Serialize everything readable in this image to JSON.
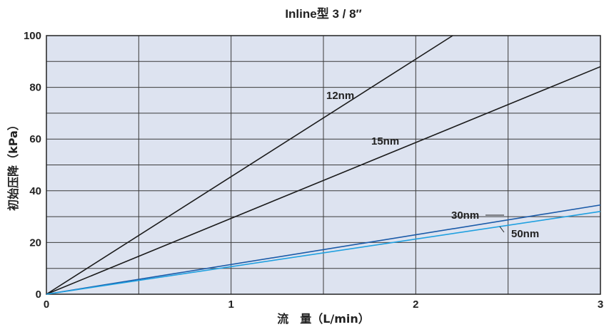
{
  "chart_data": {
    "type": "line",
    "title": "Inline型 3 / 8″",
    "xlabel": "流　量（L/min）",
    "ylabel": "初始压降（kPa）",
    "xlim": [
      0,
      3
    ],
    "ylim": [
      0,
      100
    ],
    "x_ticks": [
      "0",
      "1",
      "2",
      "3"
    ],
    "y_ticks": [
      "0",
      "20",
      "40",
      "60",
      "80",
      "100"
    ],
    "grid": true,
    "series": [
      {
        "name": "12nm",
        "color": "#1a1a1a",
        "x": [
          0,
          2.2
        ],
        "y": [
          0,
          100
        ]
      },
      {
        "name": "15nm",
        "color": "#1a1a1a",
        "x": [
          0,
          3
        ],
        "y": [
          0,
          88
        ]
      },
      {
        "name": "30nm",
        "color": "#1a5aa8",
        "x": [
          0,
          3
        ],
        "y": [
          0,
          34.5
        ]
      },
      {
        "name": "50nm",
        "color": "#1fa0e0",
        "x": [
          0,
          3
        ],
        "y": [
          0,
          32
        ]
      }
    ]
  }
}
